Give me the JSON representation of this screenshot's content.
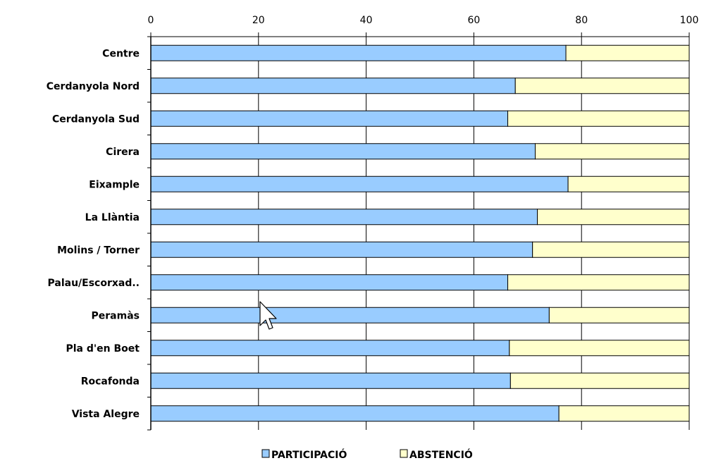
{
  "chart_data": {
    "type": "bar",
    "orientation": "horizontal",
    "stacked": true,
    "categories": [
      "Centre",
      "Cerdanyola Nord",
      "Cerdanyola Sud",
      "Cirera",
      "Eixample",
      "La Llàntia",
      "Molins / Torner",
      "Palau/Escorxad..",
      "Peramàs",
      "Pla d'en Boet",
      "Rocafonda",
      "Vista Alegre"
    ],
    "series": [
      {
        "name": "PARTICIPACIÓ",
        "color": "#99ccff",
        "values": [
          77.1,
          67.7,
          66.3,
          71.4,
          77.5,
          71.8,
          70.9,
          66.3,
          74.0,
          66.6,
          66.8,
          75.8
        ]
      },
      {
        "name": "ABSTENCIÓ",
        "color": "#ffffcc",
        "values": [
          22.9,
          32.3,
          33.7,
          28.6,
          22.5,
          28.2,
          29.1,
          33.7,
          26.0,
          33.4,
          33.2,
          24.2
        ]
      }
    ],
    "xlim": [
      0,
      100
    ],
    "xticks": [
      "0",
      "20",
      "40",
      "60",
      "80",
      "100"
    ],
    "title": "",
    "xlabel": "",
    "ylabel": "",
    "grid": true,
    "legend_position": "bottom"
  }
}
